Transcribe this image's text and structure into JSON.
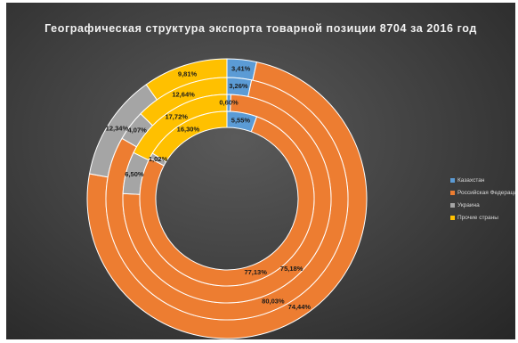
{
  "chart_data": {
    "type": "donut",
    "title": "Географическая структура экспорта товарной позиции 8704 за 2016 год",
    "legend_position": "right",
    "categories": [
      "Казахстан",
      "Российская Федерация",
      "Украина",
      "Прочие страны"
    ],
    "colors": [
      "#5b9bd5",
      "#ed7d31",
      "#a5a5a5",
      "#ffc000"
    ],
    "rings": [
      {
        "ring": "outer",
        "values": [
          3.41,
          74.44,
          12.34,
          9.81
        ],
        "labels": [
          "3,41%",
          "74,44%",
          "12,34%",
          "9,81%"
        ]
      },
      {
        "ring": "second",
        "values": [
          3.26,
          80.03,
          4.07,
          12.64
        ],
        "labels": [
          "3,26%",
          "80,03%",
          "4,07%",
          "12,64%"
        ]
      },
      {
        "ring": "third",
        "values": [
          0.6,
          75.18,
          6.5,
          17.72
        ],
        "labels": [
          "0,60%",
          "75,18%",
          "6,50%",
          "17,72%"
        ]
      },
      {
        "ring": "inner",
        "values": [
          5.55,
          77.13,
          1.02,
          16.3
        ],
        "labels": [
          "5,55%",
          "77,13%",
          "1,02%",
          "16,30%"
        ]
      }
    ]
  }
}
